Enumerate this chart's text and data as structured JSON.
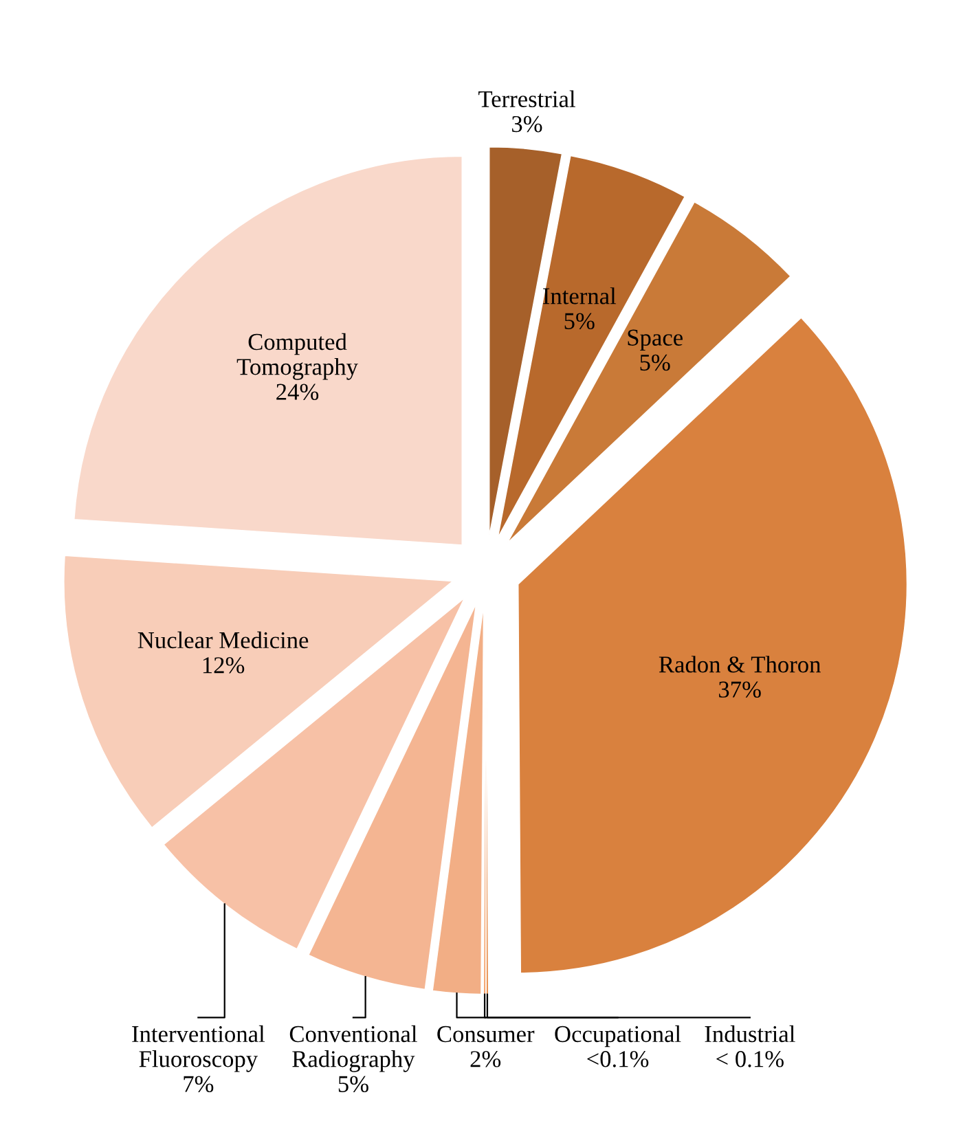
{
  "chart_data": {
    "type": "pie",
    "categories": [
      "Terrestrial",
      "Internal",
      "Space",
      "Radon & Thoron",
      "Industrial",
      "Occupational",
      "Consumer",
      "Conventional Radiography",
      "Interventional Fluoroscopy",
      "Nuclear Medicine",
      "Computed Tomography"
    ],
    "values": [
      3,
      5,
      5,
      37,
      0.1,
      0.1,
      2,
      5,
      7,
      12,
      24
    ],
    "value_labels": [
      "3%",
      "5%",
      "5%",
      "37%",
      "< 0.1%",
      "<0.1%",
      "2%",
      "5%",
      "7%",
      "12%",
      "24%"
    ],
    "colors": [
      "#a6602a",
      "#b8692c",
      "#c97a38",
      "#d9813e",
      "#e8904f",
      "#f4a46e",
      "#f2ae85",
      "#f4b592",
      "#f7c1a6",
      "#f8cdb8",
      "#f9d8ca"
    ],
    "legend": false
  }
}
